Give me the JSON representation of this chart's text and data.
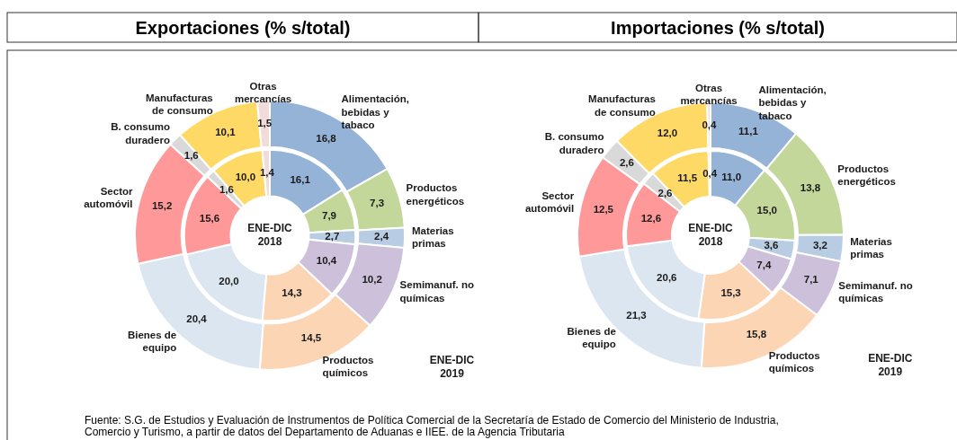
{
  "chart_data": [
    {
      "type": "donut",
      "title": "Exportaciones (% s/total)",
      "categories": [
        "Alimentación, bebidas y tabaco",
        "Productos energéticos",
        "Materias primas",
        "Semimanuf. no químicas",
        "Productos químicos",
        "Bienes de equipo",
        "Sector automóvil",
        "B. consumo duradero",
        "Manufacturas de consumo",
        "Otras mercancías"
      ],
      "colors": [
        "#95b3d7",
        "#c4d79b",
        "#b8cce4",
        "#ccc0da",
        "#fcd5b4",
        "#dce6f1",
        "#ff9999",
        "#d9d9d9",
        "#ffd966",
        "#f2dcdb"
      ],
      "series": [
        {
          "name": "ENE-DIC 2019",
          "values": [
            16.8,
            7.3,
            2.4,
            10.2,
            14.5,
            20.4,
            15.2,
            1.6,
            10.1,
            1.5
          ],
          "value_labels": [
            "16,8",
            "7,3",
            "2,4",
            "10,2",
            "14,5",
            "20,4",
            "15,2",
            "1,6",
            "10,1",
            "1,5"
          ]
        },
        {
          "name": "ENE-DIC 2018",
          "values": [
            16.1,
            7.9,
            2.7,
            10.4,
            14.3,
            20.0,
            15.6,
            1.6,
            10.0,
            1.4
          ],
          "value_labels": [
            "16,1",
            "7,9",
            "2,7",
            "10,4",
            "14,3",
            "20,0",
            "15,6",
            "1,6",
            "10,0",
            "1,4"
          ]
        }
      ],
      "annotations": [
        "Fuente: S.G. de Estudios y Evaluación de Instrumentos de Política Comercial de la Secretaría de Estado de Comercio del Ministerio de Industria, Comercio y Turismo, a partir de datos del Departamento de Aduanas e IIEE. de la Agencia Tributaria"
      ]
    },
    {
      "type": "donut",
      "title": "Importaciones (% s/total)",
      "categories": [
        "Alimentación, bebidas y tabaco",
        "Productos energéticos",
        "Materias primas",
        "Semimanuf. no químicas",
        "Productos químicos",
        "Bienes de equipo",
        "Sector automóvil",
        "B. consumo duradero",
        "Manufacturas de consumo",
        "Otras mercancías"
      ],
      "colors": [
        "#95b3d7",
        "#c4d79b",
        "#b8cce4",
        "#ccc0da",
        "#fcd5b4",
        "#dce6f1",
        "#ff9999",
        "#d9d9d9",
        "#ffd966",
        "#f2dcdb"
      ],
      "series": [
        {
          "name": "ENE-DIC 2019",
          "values": [
            11.1,
            13.8,
            3.2,
            7.1,
            15.8,
            21.3,
            12.5,
            2.6,
            12.0,
            0.4
          ],
          "value_labels": [
            "11,1",
            "13,8",
            "3,2",
            "7,1",
            "15,8",
            "21,3",
            "12,5",
            "2,6",
            "12,0",
            "0,4"
          ]
        },
        {
          "name": "ENE-DIC 2018",
          "values": [
            11.0,
            15.0,
            3.6,
            7.4,
            15.3,
            20.6,
            12.6,
            2.6,
            11.5,
            0.4
          ],
          "value_labels": [
            "11,0",
            "15,0",
            "3,6",
            "7,4",
            "15,3",
            "20,6",
            "12,6",
            "2,6",
            "11,5",
            "0,4"
          ]
        }
      ]
    }
  ]
}
